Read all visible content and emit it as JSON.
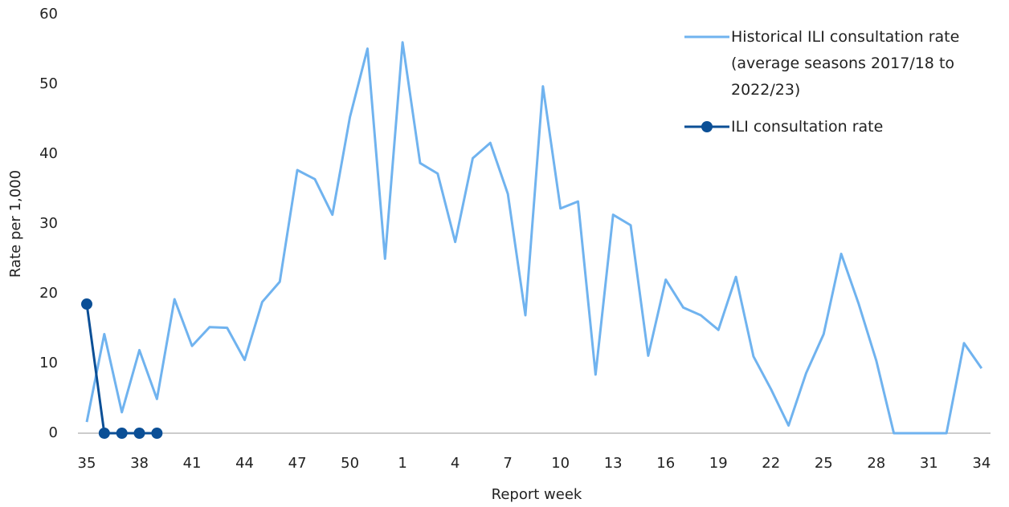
{
  "chart_data": {
    "type": "line",
    "x_label": "Report week",
    "y_label": "Rate per 1,000",
    "categories": [
      35,
      null,
      null,
      38,
      null,
      null,
      41,
      null,
      null,
      44,
      null,
      null,
      47,
      null,
      null,
      50,
      null,
      null,
      1,
      null,
      null,
      4,
      null,
      null,
      7,
      null,
      null,
      10,
      null,
      null,
      13,
      null,
      null,
      16,
      null,
      null,
      19,
      null,
      null,
      22,
      null,
      null,
      25,
      null,
      null,
      28,
      null,
      null,
      31,
      null,
      null,
      34
    ],
    "series": [
      {
        "name": "Historical ILI consultation rate (average seasons 2017/18 to 2022/23)",
        "color": "#70b3ef",
        "markers": false,
        "values": [
          1.6,
          14.2,
          3,
          11.9,
          4.9,
          19.2,
          12.5,
          15.2,
          15.1,
          10.5,
          18.8,
          21.7,
          37.7,
          36.4,
          31.3,
          45.3,
          55.1,
          25,
          56,
          38.7,
          37.2,
          27.4,
          39.4,
          41.6,
          34.3,
          16.9,
          49.7,
          32.2,
          33.2,
          8.4,
          31.3,
          29.8,
          11.1,
          22,
          18,
          16.9,
          14.8,
          22.4,
          11,
          6.3,
          1.1,
          8.6,
          14.2,
          25.7,
          18.5,
          10.4,
          0,
          0,
          0,
          0,
          12.9,
          9.3
        ]
      },
      {
        "name": "ILI consultation rate",
        "color": "#0b4f96",
        "markers": true,
        "values": [
          18.5,
          0,
          0,
          0,
          0,
          null,
          null,
          null,
          null,
          null,
          null,
          null,
          null,
          null,
          null,
          null,
          null,
          null,
          null,
          null,
          null,
          null,
          null,
          null,
          null,
          null,
          null,
          null,
          null,
          null,
          null,
          null,
          null,
          null,
          null,
          null,
          null,
          null,
          null,
          null,
          null,
          null,
          null,
          null,
          null,
          null,
          null,
          null,
          null,
          null,
          null,
          null
        ]
      }
    ],
    "ylim": [
      0,
      60
    ],
    "yticks": [
      0,
      10,
      20,
      30,
      40,
      50,
      60
    ],
    "grid": false,
    "legend": "top-right"
  }
}
